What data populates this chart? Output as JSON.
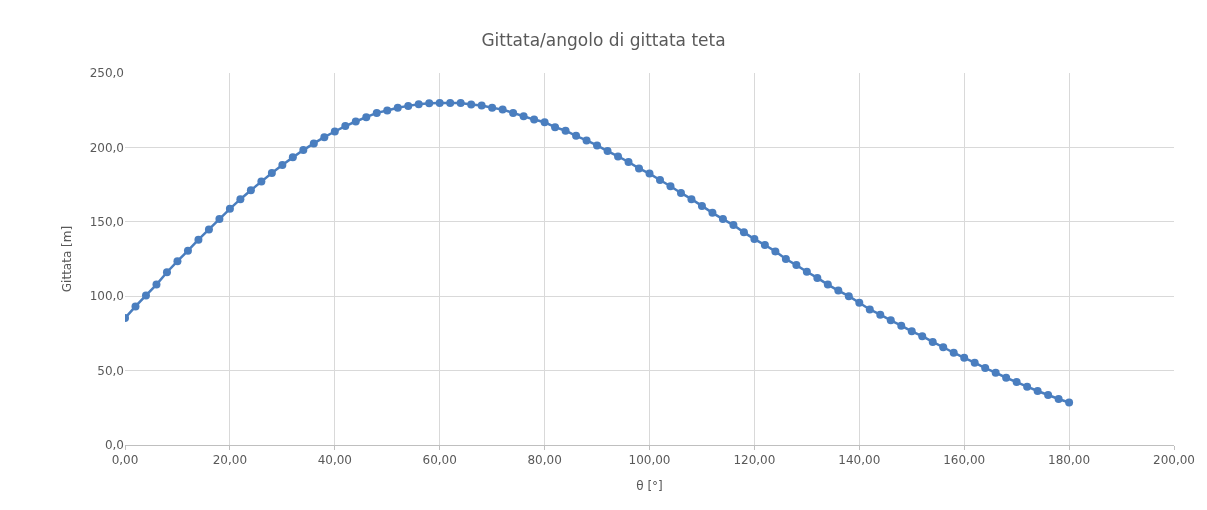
{
  "chart_data": {
    "type": "line",
    "title": "Gittata/angolo di gittata teta",
    "xlabel": "θ [°]",
    "ylabel": "Gittata [m]",
    "x": [
      0,
      2,
      4,
      6,
      8,
      10,
      12,
      14,
      16,
      18,
      20,
      22,
      24,
      26,
      28,
      30,
      32,
      34,
      36,
      38,
      40,
      42,
      44,
      46,
      48,
      50,
      52,
      54,
      56,
      58,
      60,
      62,
      64,
      66,
      68,
      70,
      72,
      74,
      76,
      78,
      80,
      82,
      84,
      86,
      88,
      90,
      92,
      94,
      96,
      98,
      100,
      102,
      104,
      106,
      108,
      110,
      112,
      114,
      116,
      118,
      120,
      122,
      124,
      126,
      128,
      130,
      132,
      134,
      136,
      138,
      140,
      142,
      144,
      146,
      148,
      150,
      152,
      154,
      156,
      158,
      160,
      162,
      164,
      166,
      168,
      170,
      172,
      174,
      176,
      178,
      180
    ],
    "series": [
      {
        "color": "#4a7ebf",
        "values": [
          85.3,
          93.1,
          100.5,
          107.8,
          116.1,
          123.5,
          130.6,
          138.0,
          144.9,
          151.8,
          158.7,
          165.2,
          171.2,
          177.0,
          182.8,
          188.2,
          193.3,
          198.2,
          202.7,
          206.9,
          210.7,
          214.3,
          217.4,
          220.3,
          223.2,
          224.8,
          226.6,
          227.9,
          229.0,
          229.7,
          229.9,
          229.9,
          229.9,
          228.8,
          228.1,
          226.6,
          225.4,
          223.2,
          220.9,
          218.7,
          216.9,
          213.6,
          211.2,
          207.8,
          204.7,
          201.3,
          197.5,
          193.9,
          190.2,
          185.9,
          182.4,
          178.1,
          173.9,
          169.4,
          165.2,
          160.7,
          156.0,
          151.8,
          147.8,
          142.9,
          138.4,
          134.4,
          130.1,
          125.0,
          120.9,
          116.4,
          112.3,
          107.8,
          103.8,
          100.0,
          95.6,
          91.1,
          87.6,
          83.8,
          80.2,
          76.4,
          73.1,
          69.3,
          65.7,
          62.0,
          58.6,
          55.3,
          51.7,
          48.6,
          45.2,
          42.3,
          39.2,
          36.3,
          33.6,
          30.9,
          28.6
        ]
      }
    ],
    "xlim": [
      0,
      200
    ],
    "ylim": [
      0,
      250
    ],
    "xticks": [
      {
        "value": 0,
        "label": "0,00"
      },
      {
        "value": 20,
        "label": "20,00"
      },
      {
        "value": 40,
        "label": "40,00"
      },
      {
        "value": 60,
        "label": "60,00"
      },
      {
        "value": 80,
        "label": "80,00"
      },
      {
        "value": 100,
        "label": "100,00"
      },
      {
        "value": 120,
        "label": "120,00"
      },
      {
        "value": 140,
        "label": "140,00"
      },
      {
        "value": 160,
        "label": "160,00"
      },
      {
        "value": 180,
        "label": "180,00"
      },
      {
        "value": 200,
        "label": "200,00"
      }
    ],
    "yticks": [
      {
        "value": 0,
        "label": "0,0"
      },
      {
        "value": 50,
        "label": "50,0"
      },
      {
        "value": 100,
        "label": "100,0"
      },
      {
        "value": 150,
        "label": "150,0"
      },
      {
        "value": 200,
        "label": "200,0"
      },
      {
        "value": 250,
        "label": "250,0"
      }
    ],
    "grid": true,
    "marker": "circle",
    "line_style": "solid"
  }
}
